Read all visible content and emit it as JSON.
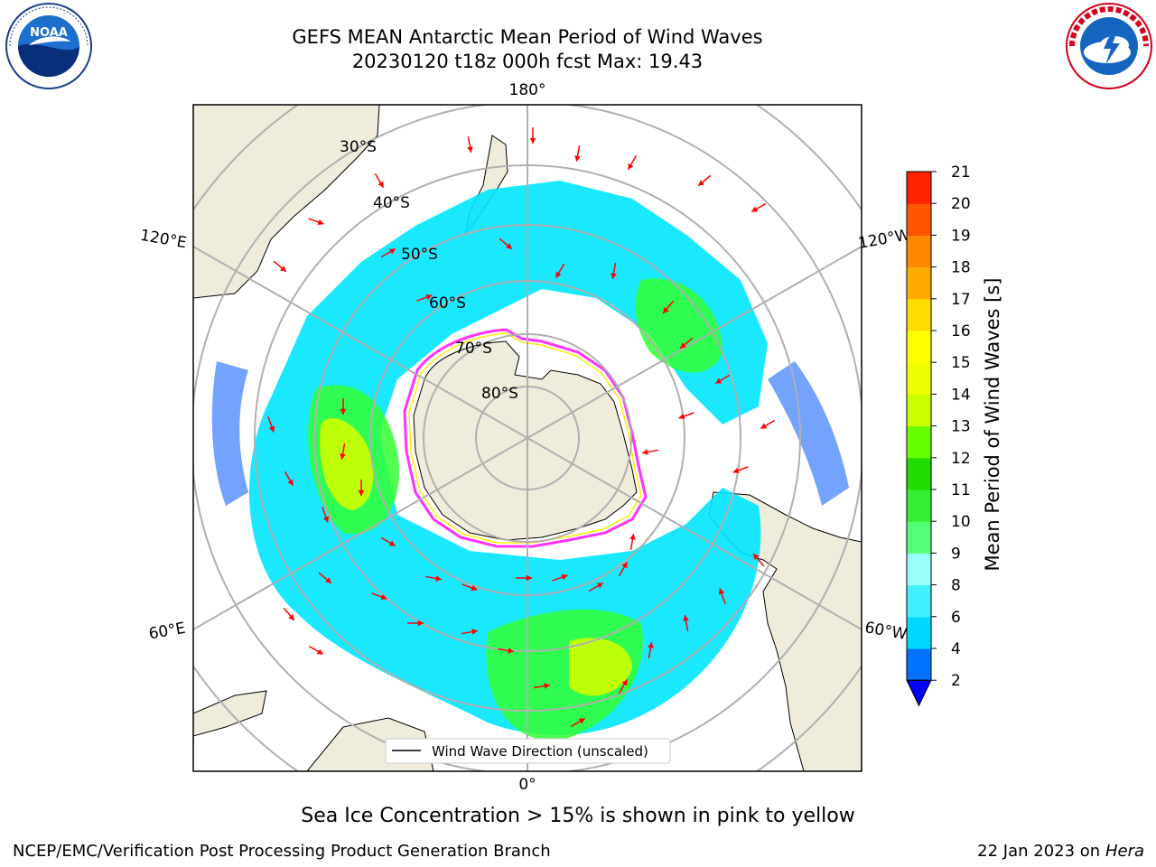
{
  "header": {
    "title_line1": "GEFS MEAN Antarctic Mean Period of Wind Waves",
    "title_line2": "20230120 t18z 000h fcst   Max: 19.43"
  },
  "logos": {
    "left": "noaa-logo",
    "right": "nws-logo"
  },
  "map": {
    "projection": "south-polar-stereographic",
    "lon_labels": [
      "180°",
      "120°E",
      "120°W",
      "60°E",
      "60°W",
      "0°"
    ],
    "lat_labels": [
      "30°S",
      "40°S",
      "50°S",
      "60°S",
      "70°S",
      "80°S"
    ],
    "legend_label": "Wind Wave Direction (unscaled)",
    "colors": {
      "land": "#efecdc",
      "ocean_low": "#0055ff",
      "ocean_mid": "#00e5ff",
      "green": "#33ff33",
      "yellow": "#ccff00",
      "ice": "#ff33ff",
      "arrow": "#ff0000"
    }
  },
  "colorbar": {
    "label": "Mean Period of Wind Waves [s]",
    "ticks": [
      "2",
      "4",
      "6",
      "8",
      "9",
      "10",
      "11",
      "12",
      "13",
      "14",
      "15",
      "16",
      "17",
      "18",
      "19",
      "20",
      "21"
    ],
    "colors": [
      "#0072ff",
      "#00d9ff",
      "#40f0ff",
      "#9afffa",
      "#55ff77",
      "#33ee33",
      "#22dd00",
      "#66ff00",
      "#ccff00",
      "#f0ff00",
      "#ffff00",
      "#ffdd00",
      "#ffaa00",
      "#ff8800",
      "#ff5500",
      "#ff2200"
    ],
    "extend_color": "#0000ff"
  },
  "caption": "Sea Ice Concentration > 15% is shown in pink to yellow",
  "footer": {
    "left": "NCEP/EMC/Verification Post Processing Product Generation Branch",
    "right_prefix": "22 Jan 2023 on ",
    "right_machine": "Hera"
  }
}
